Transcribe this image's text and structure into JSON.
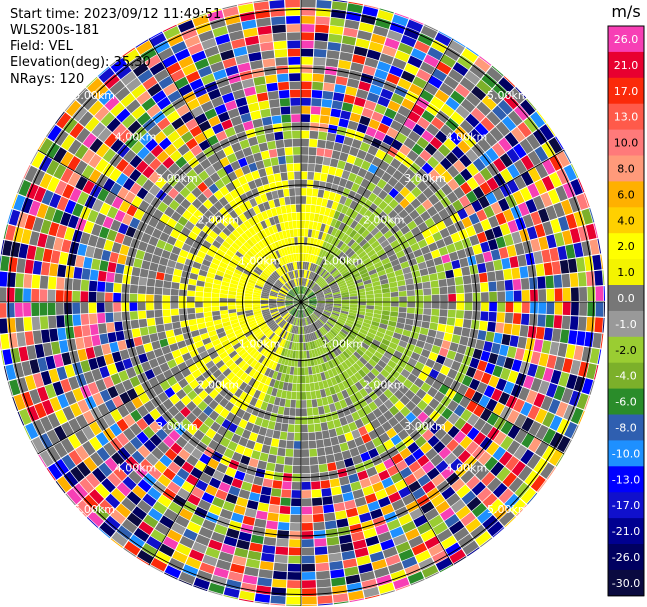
{
  "header": {
    "start_time": "Start time: 2023/09/12 11:49:51",
    "instrument": "WLS200s-181",
    "field": "Field: VEL",
    "elevation": "Elevation(deg): 35.30",
    "nrays": "NRays: 120"
  },
  "chart_data": {
    "type": "heatmap",
    "projection": "polar PPI",
    "field": "VEL",
    "units": "m/s",
    "range_rings_km": [
      1.0,
      2.0,
      3.0,
      4.0,
      5.0
    ],
    "ring_labels": [
      "1.00km",
      "2.00km",
      "3.00km",
      "4.00km",
      "5.00km"
    ],
    "colorbar": {
      "title": "m/s",
      "ticks": [
        "26.0",
        "21.0",
        "17.0",
        "13.0",
        "10.0",
        "8.0",
        "6.0",
        "4.0",
        "2.0",
        "1.0",
        "0.0",
        "-1.0",
        "-2.0",
        "-4.0",
        "-6.0",
        "-8.0",
        "-10.0",
        "-13.0",
        "-17.0",
        "-21.0",
        "-26.0",
        "-30.0"
      ],
      "colors": [
        "#f73fb5",
        "#e80030",
        "#fb2a0a",
        "#ff5a4a",
        "#ff7a7a",
        "#ff9a7a",
        "#ffb000",
        "#ffd000",
        "#ffff00",
        "#f4f400",
        "#777777",
        "#999999",
        "#9acd32",
        "#7cb02a",
        "#2a8c2a",
        "#2f5fb0",
        "#1e90ff",
        "#0000ff",
        "#1010cc",
        "#000090",
        "#000060",
        "#0a0a40"
      ]
    }
  }
}
